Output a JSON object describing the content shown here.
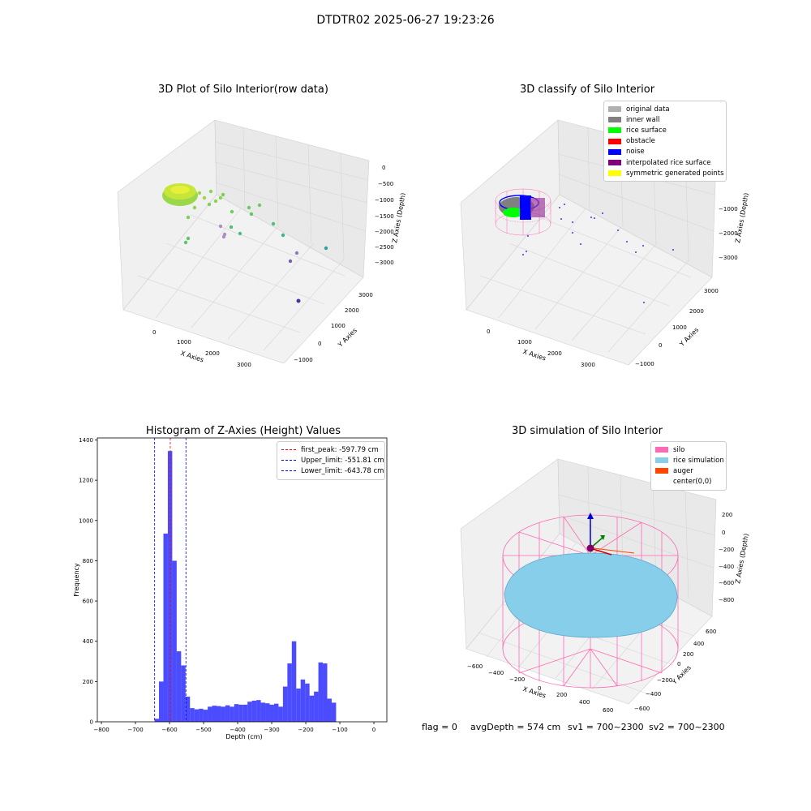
{
  "figure_title": "DTDTR02 2025-06-27 19:23:26",
  "footer": {
    "flag": "flag = 0",
    "avg_depth": "avgDepth = 574 cm",
    "sv1": "sv1 = 700~2300",
    "sv2": "sv2 = 700~2300"
  },
  "chart_data": [
    {
      "id": "raw",
      "type": "scatter",
      "title": "3D Plot of Silo Interior(row data)",
      "xlabel": "X Axies",
      "ylabel": "Y Axies",
      "zlabel": "Z Axies (Depth)",
      "x_ticks": [
        "0",
        "1000",
        "2000",
        "3000"
      ],
      "y_ticks": [
        "−1000",
        "0",
        "1000",
        "2000",
        "3000"
      ],
      "z_ticks": [
        "0",
        "−500",
        "−1000",
        "−1500",
        "−2000",
        "−2500",
        "−3000"
      ],
      "grid": true
    },
    {
      "id": "classify",
      "type": "scatter",
      "title": "3D classify of Silo Interior",
      "xlabel": "X Axies",
      "ylabel": "Y Axies",
      "zlabel": "Z Axies (Depth)",
      "x_ticks": [
        "0",
        "1000",
        "2000",
        "3000"
      ],
      "y_ticks": [
        "−1000",
        "0",
        "1000",
        "2000",
        "3000"
      ],
      "z_ticks": [
        "−1000",
        "−2000",
        "−3000"
      ],
      "grid": true,
      "legend_position": "top-right",
      "legend": [
        {
          "label": "original data",
          "color": "#b0b0b0"
        },
        {
          "label": "inner wall",
          "color": "#808080"
        },
        {
          "label": "rice surface",
          "color": "#00ff00"
        },
        {
          "label": "obstacle",
          "color": "#ff0000"
        },
        {
          "label": "noise",
          "color": "#0000ff"
        },
        {
          "label": "interpolated rice surface",
          "color": "#800080"
        },
        {
          "label": "symmetric generated points",
          "color": "#ffff00"
        }
      ]
    },
    {
      "id": "hist",
      "type": "bar",
      "title": "Histogram of Z-Axies (Height) Values",
      "xlabel": "Depth (cm)",
      "ylabel": "Frequency",
      "xlim": [
        -800,
        0
      ],
      "ylim": [
        0,
        1400
      ],
      "x_ticks": [
        -800,
        -700,
        -600,
        -500,
        -400,
        -300,
        -200,
        -100,
        0
      ],
      "y_ticks": [
        0,
        200,
        400,
        600,
        800,
        1000,
        1200,
        1400
      ],
      "bar_color": "#0000ff",
      "bins": [
        {
          "x0": -644,
          "x1": -631,
          "v": 15
        },
        {
          "x0": -631,
          "x1": -618,
          "v": 200
        },
        {
          "x0": -618,
          "x1": -605,
          "v": 935
        },
        {
          "x0": -605,
          "x1": -592,
          "v": 1345
        },
        {
          "x0": -592,
          "x1": -579,
          "v": 800
        },
        {
          "x0": -579,
          "x1": -566,
          "v": 350
        },
        {
          "x0": -566,
          "x1": -553,
          "v": 280
        },
        {
          "x0": -553,
          "x1": -540,
          "v": 125
        },
        {
          "x0": -540,
          "x1": -527,
          "v": 68
        },
        {
          "x0": -527,
          "x1": -514,
          "v": 62
        },
        {
          "x0": -514,
          "x1": -501,
          "v": 65
        },
        {
          "x0": -501,
          "x1": -488,
          "v": 60
        },
        {
          "x0": -488,
          "x1": -475,
          "v": 75
        },
        {
          "x0": -475,
          "x1": -462,
          "v": 80
        },
        {
          "x0": -462,
          "x1": -449,
          "v": 78
        },
        {
          "x0": -449,
          "x1": -436,
          "v": 75
        },
        {
          "x0": -436,
          "x1": -423,
          "v": 82
        },
        {
          "x0": -423,
          "x1": -410,
          "v": 75
        },
        {
          "x0": -410,
          "x1": -397,
          "v": 88
        },
        {
          "x0": -397,
          "x1": -384,
          "v": 85
        },
        {
          "x0": -384,
          "x1": -371,
          "v": 85
        },
        {
          "x0": -371,
          "x1": -358,
          "v": 100
        },
        {
          "x0": -358,
          "x1": -345,
          "v": 105
        },
        {
          "x0": -345,
          "x1": -332,
          "v": 108
        },
        {
          "x0": -332,
          "x1": -319,
          "v": 95
        },
        {
          "x0": -319,
          "x1": -306,
          "v": 92
        },
        {
          "x0": -306,
          "x1": -293,
          "v": 85
        },
        {
          "x0": -293,
          "x1": -280,
          "v": 90
        },
        {
          "x0": -280,
          "x1": -267,
          "v": 75
        },
        {
          "x0": -267,
          "x1": -254,
          "v": 175
        },
        {
          "x0": -254,
          "x1": -241,
          "v": 290
        },
        {
          "x0": -241,
          "x1": -228,
          "v": 400
        },
        {
          "x0": -228,
          "x1": -215,
          "v": 165
        },
        {
          "x0": -215,
          "x1": -202,
          "v": 210
        },
        {
          "x0": -202,
          "x1": -189,
          "v": 190
        },
        {
          "x0": -189,
          "x1": -176,
          "v": 130
        },
        {
          "x0": -176,
          "x1": -163,
          "v": 150
        },
        {
          "x0": -163,
          "x1": -150,
          "v": 295
        },
        {
          "x0": -150,
          "x1": -137,
          "v": 290
        },
        {
          "x0": -137,
          "x1": -124,
          "v": 115
        },
        {
          "x0": -124,
          "x1": -111,
          "v": 95
        }
      ],
      "vlines": [
        {
          "label": "first_peak: -597.79 cm",
          "x": -597.79,
          "color": "#ff0000"
        },
        {
          "label": "Upper_limit: -551.81 cm",
          "x": -551.81,
          "color": "#0000ff"
        },
        {
          "label": "Lower_limit: -643.78 cm",
          "x": -643.78,
          "color": "#0000ff"
        }
      ],
      "legend_position": "top-right"
    },
    {
      "id": "sim",
      "type": "scatter",
      "title": "3D simulation of Silo Interior",
      "xlabel": "X Axies",
      "ylabel": "Y Axies",
      "zlabel": "Z Axies (Depth)",
      "x_ticks": [
        "−600",
        "−400",
        "−200",
        "0",
        "200",
        "400",
        "600"
      ],
      "y_ticks": [
        "−600",
        "−400",
        "−200",
        "0",
        "200",
        "400",
        "600"
      ],
      "z_ticks": [
        "200",
        "0",
        "−200",
        "−400",
        "−600",
        "−800"
      ],
      "grid": true,
      "legend_position": "top-right",
      "legend": [
        {
          "label": "silo",
          "color": "#ff69b4"
        },
        {
          "label": "rice simulation",
          "color": "#87ceeb"
        },
        {
          "label": "auger",
          "color": "#ff4500"
        },
        {
          "label": "center(0,0)",
          "color": ""
        }
      ]
    }
  ]
}
